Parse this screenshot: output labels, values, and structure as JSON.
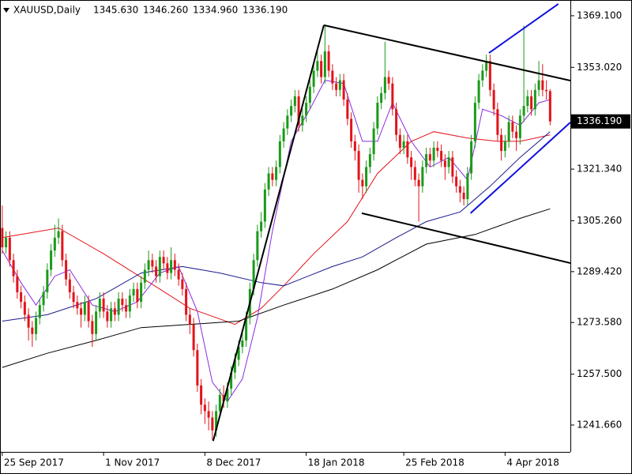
{
  "chart_data": {
    "type": "candlestick",
    "symbol": "XAUUSD,Daily",
    "ohlc": [
      {
        "value": 1345.63,
        "label": "1345.630"
      },
      {
        "value": 1346.26,
        "label": "1346.260"
      },
      {
        "value": 1334.96,
        "label": "1334.960"
      },
      {
        "value": 1336.19,
        "label": "1336.190"
      }
    ],
    "price_label": {
      "value": 1336.19,
      "label": "1336.190"
    },
    "up_color": "#1a9a1a",
    "down_color": "#e3131b",
    "ylim": [
      1233.3,
      1374.0
    ],
    "xlim": [
      -0.6,
      151.4
    ],
    "yticks": [
      {
        "value": 1369.1,
        "label": "1369.100"
      },
      {
        "value": 1353.02,
        "label": "1353.020"
      },
      {
        "value": 1321.34,
        "label": "1321.340"
      },
      {
        "value": 1305.26,
        "label": "1305.260"
      },
      {
        "value": 1289.42,
        "label": "1289.420"
      },
      {
        "value": 1273.58,
        "label": "1273.580"
      },
      {
        "value": 1257.5,
        "label": "1257.500"
      },
      {
        "value": 1241.66,
        "label": "1241.660"
      }
    ],
    "categories": [
      "25 Sep 2017",
      null,
      null,
      null,
      null,
      null,
      null,
      null,
      null,
      null,
      null,
      null,
      null,
      null,
      null,
      null,
      null,
      null,
      null,
      null,
      null,
      null,
      null,
      null,
      null,
      null,
      null,
      "1 Nov 2017",
      null,
      null,
      null,
      null,
      null,
      null,
      null,
      null,
      null,
      null,
      null,
      null,
      null,
      null,
      null,
      null,
      null,
      null,
      null,
      null,
      null,
      null,
      null,
      null,
      null,
      null,
      "8 Dec 2017",
      null,
      null,
      null,
      null,
      null,
      null,
      null,
      null,
      null,
      null,
      null,
      null,
      null,
      null,
      null,
      null,
      null,
      null,
      null,
      null,
      null,
      null,
      null,
      null,
      null,
      null,
      "18 Jan 2018",
      null,
      null,
      null,
      null,
      null,
      null,
      null,
      null,
      null,
      null,
      null,
      null,
      null,
      null,
      null,
      null,
      null,
      null,
      null,
      null,
      null,
      null,
      null,
      null,
      null,
      "25 Feb 2018",
      null,
      null,
      null,
      null,
      null,
      null,
      null,
      null,
      null,
      null,
      null,
      null,
      null,
      null,
      null,
      null,
      null,
      null,
      null,
      null,
      null,
      null,
      null,
      null,
      null,
      null,
      "4 Apr 2018",
      null,
      null,
      null,
      null,
      null,
      null,
      null,
      null,
      null,
      null,
      null,
      null
    ],
    "open": [
      1303,
      1297,
      1300,
      1293,
      1288,
      1283,
      1280,
      1276,
      1272,
      1270,
      1275,
      1279,
      1283,
      1290,
      1296,
      1300,
      1302,
      1293,
      1287,
      1283,
      1280,
      1278,
      1276,
      1280,
      1274,
      1270,
      1277,
      1281,
      1277,
      1274,
      1278,
      1276,
      1281,
      1279,
      1277,
      1282,
      1284,
      1280,
      1286,
      1290,
      1293,
      1291,
      1288,
      1294,
      1292,
      1289,
      1293,
      1290,
      1287,
      1284,
      1276,
      1273,
      1265,
      1254,
      1248,
      1246,
      1244,
      1240,
      1246,
      1251,
      1249,
      1253,
      1258,
      1262,
      1266,
      1268,
      1275,
      1284,
      1293,
      1302,
      1305,
      1315,
      1320,
      1318,
      1322,
      1330,
      1334,
      1338,
      1341,
      1344,
      1335,
      1338,
      1342,
      1347,
      1352,
      1355,
      1350,
      1358,
      1352,
      1348,
      1346,
      1349,
      1343,
      1337,
      1330,
      1327,
      1318,
      1316,
      1322,
      1326,
      1334,
      1342,
      1345,
      1350,
      1348,
      1340,
      1332,
      1328,
      1330,
      1325,
      1322,
      1318,
      1316,
      1322,
      1326,
      1324,
      1328,
      1327,
      1324,
      1322,
      1325,
      1319,
      1316,
      1314,
      1312,
      1320,
      1330,
      1342,
      1349,
      1352,
      1355,
      1346,
      1340,
      1332,
      1327,
      1330,
      1336,
      1333,
      1331,
      1338,
      1341,
      1344,
      1340,
      1346,
      1349,
      1346,
      1345.63
    ],
    "high": [
      1310,
      1302,
      1302,
      1295,
      1290,
      1285,
      1282,
      1278,
      1274,
      1277,
      1281,
      1285,
      1292,
      1298,
      1304,
      1306,
      1304,
      1295,
      1289,
      1285,
      1282,
      1280,
      1282,
      1282,
      1276,
      1279,
      1283,
      1283,
      1279,
      1280,
      1280,
      1283,
      1283,
      1281,
      1284,
      1286,
      1286,
      1288,
      1292,
      1296,
      1295,
      1293,
      1296,
      1296,
      1294,
      1297,
      1295,
      1292,
      1289,
      1286,
      1278,
      1275,
      1267,
      1256,
      1250,
      1249,
      1246,
      1248,
      1253,
      1254,
      1255,
      1260,
      1264,
      1268,
      1271,
      1277,
      1286,
      1295,
      1304,
      1308,
      1317,
      1322,
      1322,
      1324,
      1332,
      1336,
      1340,
      1343,
      1346,
      1346,
      1340,
      1344,
      1349,
      1354,
      1358,
      1357,
      1366,
      1360,
      1354,
      1350,
      1351,
      1351,
      1345,
      1339,
      1332,
      1329,
      1320,
      1324,
      1328,
      1336,
      1344,
      1347,
      1361,
      1352,
      1350,
      1342,
      1334,
      1332,
      1332,
      1327,
      1324,
      1320,
      1324,
      1328,
      1328,
      1330,
      1330,
      1329,
      1326,
      1327,
      1327,
      1321,
      1318,
      1316,
      1322,
      1332,
      1344,
      1351,
      1354,
      1357,
      1357,
      1348,
      1342,
      1334,
      1332,
      1338,
      1338,
      1335,
      1340,
      1366,
      1346,
      1346,
      1348,
      1355,
      1354,
      1349,
      1346.26
    ],
    "low": [
      1295,
      1295,
      1291,
      1286,
      1281,
      1278,
      1274,
      1268,
      1266,
      1268,
      1273,
      1277,
      1281,
      1288,
      1294,
      1298,
      1291,
      1285,
      1281,
      1278,
      1276,
      1272,
      1274,
      1272,
      1266,
      1268,
      1275,
      1275,
      1272,
      1272,
      1274,
      1274,
      1277,
      1275,
      1275,
      1280,
      1278,
      1278,
      1284,
      1288,
      1289,
      1286,
      1286,
      1290,
      1287,
      1287,
      1288,
      1285,
      1282,
      1274,
      1270,
      1263,
      1252,
      1245,
      1242,
      1240,
      1237,
      1238,
      1244,
      1247,
      1247,
      1251,
      1256,
      1260,
      1264,
      1266,
      1273,
      1282,
      1291,
      1300,
      1303,
      1313,
      1316,
      1316,
      1320,
      1328,
      1332,
      1336,
      1339,
      1333,
      1333,
      1336,
      1340,
      1345,
      1350,
      1348,
      1348,
      1350,
      1346,
      1344,
      1344,
      1341,
      1335,
      1328,
      1324,
      1314,
      1312,
      1314,
      1320,
      1324,
      1332,
      1340,
      1343,
      1346,
      1338,
      1330,
      1326,
      1326,
      1323,
      1318,
      1316,
      1305,
      1314,
      1320,
      1322,
      1322,
      1325,
      1322,
      1318,
      1320,
      1317,
      1314,
      1311,
      1310,
      1310,
      1318,
      1328,
      1340,
      1347,
      1350,
      1344,
      1338,
      1330,
      1324,
      1325,
      1328,
      1331,
      1327,
      1329,
      1336,
      1339,
      1338,
      1338,
      1344,
      1344,
      1343,
      1334.96
    ],
    "close": [
      1297,
      1300,
      1293,
      1288,
      1283,
      1280,
      1276,
      1272,
      1270,
      1275,
      1279,
      1283,
      1290,
      1296,
      1300,
      1302,
      1293,
      1287,
      1283,
      1280,
      1278,
      1276,
      1280,
      1274,
      1270,
      1277,
      1281,
      1277,
      1274,
      1278,
      1276,
      1281,
      1279,
      1277,
      1282,
      1284,
      1280,
      1286,
      1290,
      1293,
      1291,
      1288,
      1294,
      1292,
      1289,
      1293,
      1290,
      1287,
      1284,
      1276,
      1273,
      1265,
      1254,
      1248,
      1246,
      1244,
      1240,
      1246,
      1251,
      1249,
      1253,
      1258,
      1262,
      1266,
      1268,
      1275,
      1284,
      1293,
      1302,
      1305,
      1315,
      1320,
      1318,
      1322,
      1330,
      1334,
      1338,
      1341,
      1344,
      1335,
      1338,
      1342,
      1347,
      1352,
      1355,
      1350,
      1358,
      1352,
      1348,
      1346,
      1349,
      1343,
      1337,
      1330,
      1327,
      1318,
      1316,
      1322,
      1326,
      1334,
      1342,
      1345,
      1350,
      1348,
      1340,
      1332,
      1328,
      1330,
      1325,
      1322,
      1318,
      1316,
      1322,
      1326,
      1324,
      1328,
      1327,
      1324,
      1322,
      1325,
      1319,
      1316,
      1314,
      1312,
      1320,
      1330,
      1342,
      1349,
      1352,
      1355,
      1346,
      1340,
      1332,
      1327,
      1330,
      1336,
      1333,
      1331,
      1338,
      1341,
      1344,
      1340,
      1346,
      1349,
      1346,
      1345.63,
      1336.19
    ],
    "lines": [
      {
        "color": "#e3131b",
        "x": [
          0,
          15,
          27,
          42,
          50,
          62,
          69,
          75,
          83,
          92,
          100,
          109,
          115,
          124,
          132,
          138,
          146
        ],
        "values": [
          1300,
          1303,
          1295,
          1284,
          1278,
          1273,
          1278,
          1285,
          1295,
          1305,
          1320,
          1330,
          1333,
          1331,
          1330,
          1330,
          1332
        ]
      },
      {
        "color": "#1a1a8c",
        "x": [
          0,
          12,
          25,
          37,
          48,
          58,
          69,
          75,
          88,
          96,
          105,
          113,
          122,
          130,
          138,
          146
        ],
        "values": [
          1274,
          1276,
          1281,
          1289,
          1291,
          1289,
          1286,
          1285,
          1291,
          1294,
          1300,
          1305,
          1308,
          1316,
          1325,
          1333
        ]
      },
      {
        "color": "#000000",
        "x": [
          0,
          12,
          25,
          37,
          50,
          63,
          75,
          88,
          100,
          113,
          126,
          138,
          146
        ],
        "values": [
          1259.6,
          1264,
          1268,
          1272,
          1273,
          1274,
          1279,
          1284,
          1290,
          1298,
          1301,
          1306,
          1309
        ]
      },
      {
        "color": "#8a2be2",
        "x": [
          0,
          5,
          9,
          14,
          18,
          24,
          30,
          36,
          42,
          47,
          52,
          56,
          60,
          64,
          68,
          72,
          77,
          82,
          86,
          91,
          96,
          100,
          104,
          109,
          114,
          119,
          124,
          128,
          133,
          138,
          143,
          146
        ],
        "values": [
          1296,
          1286,
          1279,
          1288,
          1290,
          1279,
          1277,
          1280,
          1289,
          1291,
          1277,
          1255,
          1249,
          1256,
          1275,
          1302,
          1330,
          1340,
          1349,
          1348,
          1330,
          1330,
          1342,
          1330,
          1322,
          1325,
          1318,
          1340,
          1338,
          1335,
          1342,
          1343
        ]
      }
    ],
    "trendlines": [
      {
        "color": "#000000",
        "x": [
          56.2,
          85.7
        ],
        "values": [
          1236.7,
          1366.15
        ]
      },
      {
        "color": "#000000",
        "x": [
          85.7,
          151.4
        ],
        "values": [
          1366.15,
          1348.9
        ]
      },
      {
        "color": "#000000",
        "x": [
          95.8,
          151.4
        ],
        "values": [
          1307.6,
          1292.1
        ]
      },
      {
        "color": "#1010e0",
        "x": [
          129.7,
          148.2
        ],
        "values": [
          1357.5,
          1372.8
        ]
      },
      {
        "color": "#1010e0",
        "x": [
          124.8,
          151.4
        ],
        "values": [
          1307.6,
          1335.9
        ]
      }
    ]
  }
}
